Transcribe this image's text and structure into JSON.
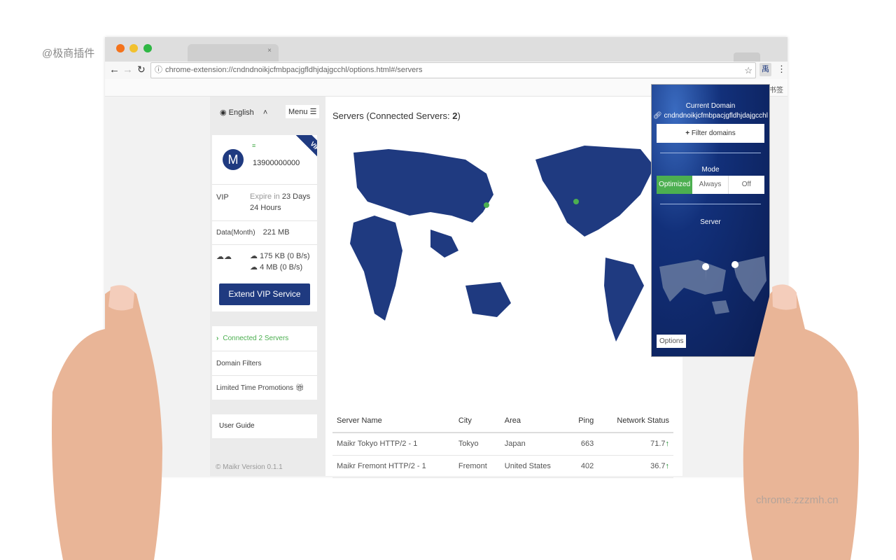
{
  "watermarks": {
    "top_left": "@极商插件",
    "bottom_right": "chrome.zzzmh.cn"
  },
  "browser": {
    "url": "chrome-extension://cndndnoikjcfmbpacjgfldhjdajgcchl/options.html#/servers",
    "tab_close": "×",
    "bookmarks_label": "书签"
  },
  "sidebar": {
    "language": "English",
    "menu_label": "Menu",
    "avatar_letter": "M",
    "phone": "13900000000",
    "vip_ribbon": "VIP",
    "vip_label": "VIP",
    "expire_prefix": "Expire in",
    "expire_value": "23 Days 24 Hours",
    "data_label": "Data(Month)",
    "data_value": "221 MB",
    "upload": "175 KB (0 B/s)",
    "download": "4 MB (0 B/s)",
    "extend_button": "Extend VIP Service",
    "nav": [
      {
        "label": "Connected 2 Servers",
        "active": true
      },
      {
        "label": "Domain Filters"
      },
      {
        "label": "Limited Time Promotions"
      }
    ],
    "user_guide": "User Guide",
    "version": "© Maikr Version 0.1.1"
  },
  "main": {
    "title_prefix": "Servers (Connected Servers: ",
    "connected_count": "2",
    "title_suffix": ")",
    "table": {
      "headers": [
        "Server Name",
        "City",
        "Area",
        "Ping",
        "Network Status"
      ],
      "rows": [
        [
          "Maikr Tokyo HTTP/2 - 1",
          "Tokyo",
          "Japan",
          "663",
          "71.7"
        ],
        [
          "Maikr Fremont HTTP/2 - 1",
          "Fremont",
          "United States",
          "402",
          "36.7"
        ]
      ]
    }
  },
  "popup": {
    "current_domain_label": "Current Domain",
    "domain": "cndndnoikjcfmbpacjgfldhjdajgcchl",
    "filter_button": "Filter domains",
    "mode_label": "Mode",
    "modes": [
      "Optimized",
      "Always",
      "Off"
    ],
    "active_mode": "Optimized",
    "server_label": "Server",
    "options_button": "Options"
  },
  "colors": {
    "navy": "#1f3a80",
    "green": "#4caf50",
    "arrow_green": "#1a8a2a"
  }
}
